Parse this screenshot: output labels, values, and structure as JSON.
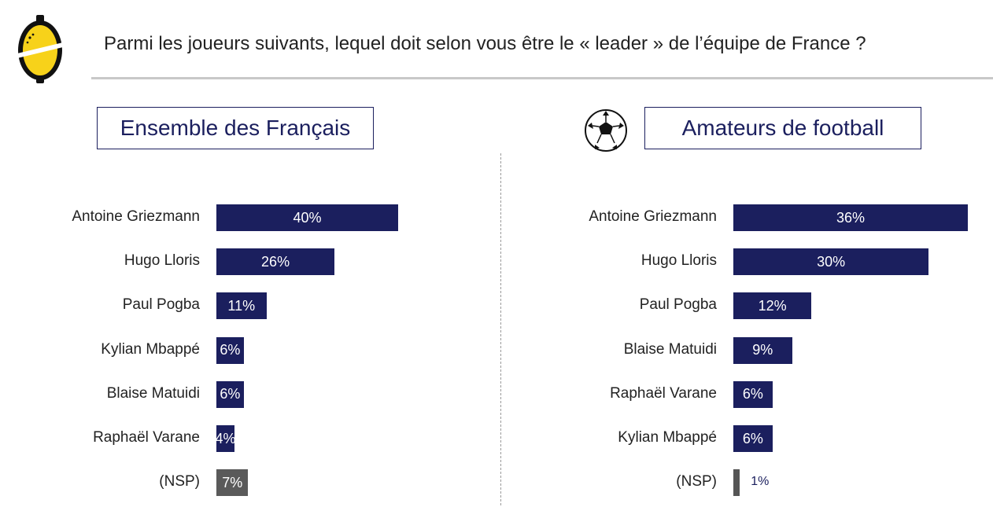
{
  "header": {
    "title": "Parmi les joueurs suivants, lequel doit selon vous être le « leader » de l’équipe de France ?"
  },
  "icons": {
    "logo": "lemon-logo-icon",
    "ball": "soccer-ball-icon"
  },
  "colors": {
    "bar": "#1b1f5e",
    "nsp_bar": "#5a5a5a",
    "nsp_bar_right": "#555555",
    "accent_logo": "#f7d21a"
  },
  "chart_data": [
    {
      "type": "bar",
      "orientation": "horizontal",
      "title": "Ensemble des Français",
      "categories": [
        "Antoine Griezmann",
        "Hugo Lloris",
        "Paul Pogba",
        "Kylian Mbappé",
        "Blaise Matuidi",
        "Raphaël Varane",
        "(NSP)"
      ],
      "values": [
        40,
        26,
        11,
        6,
        6,
        4,
        7
      ],
      "labels": [
        "40%",
        "26%",
        "11%",
        "6%",
        "6%",
        "4%",
        "7%"
      ],
      "xlim": [
        0,
        40
      ],
      "grid": false
    },
    {
      "type": "bar",
      "orientation": "horizontal",
      "title": "Amateurs de football",
      "categories": [
        "Antoine Griezmann",
        "Hugo Lloris",
        "Paul Pogba",
        "Blaise Matuidi",
        "Raphaël Varane",
        "Kylian Mbappé",
        "(NSP)"
      ],
      "values": [
        36,
        30,
        12,
        9,
        6,
        6,
        1
      ],
      "labels": [
        "36%",
        "30%",
        "12%",
        "9%",
        "6%",
        "6%",
        "1%"
      ],
      "xlim": [
        0,
        36
      ],
      "grid": false
    }
  ]
}
